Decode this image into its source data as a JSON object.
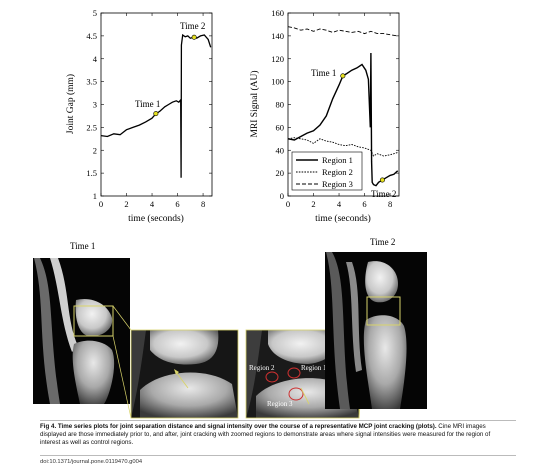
{
  "figure": {
    "left_plot": {
      "ylabel": "Joint Gap (mm)",
      "xlabel": "time (seconds)",
      "annotations": [
        "Time 1",
        "Time 2"
      ]
    },
    "right_plot": {
      "ylabel": "MRI Signal (AU)",
      "xlabel": "time (seconds)",
      "annotations": [
        "Time 1",
        "Time 2"
      ]
    },
    "mri": {
      "time1_label": "Time 1",
      "time2_label": "Time 2",
      "region_labels": [
        "Region 2",
        "Region 1",
        "Region 3"
      ]
    }
  },
  "chart_data": [
    {
      "type": "line",
      "xlabel": "time (seconds)",
      "ylabel": "Joint Gap (mm)",
      "xlim": [
        0,
        8.7
      ],
      "ylim": [
        1,
        5
      ],
      "xticks": [
        0,
        2,
        4,
        6,
        8
      ],
      "yticks": [
        1,
        1.5,
        2,
        2.5,
        3,
        3.5,
        4,
        4.5,
        5
      ],
      "series": [
        {
          "x": [
            0,
            0.5,
            1,
            1.5,
            2,
            2.5,
            3,
            3.5,
            4,
            4.3,
            4.6,
            5,
            5.3,
            5.6,
            5.9,
            6.1,
            6.25,
            6.28,
            6.3,
            6.4,
            6.6,
            6.8,
            7.0,
            7.3,
            7.5,
            7.8,
            8.1,
            8.4,
            8.6
          ],
          "y": [
            2.32,
            2.3,
            2.36,
            2.34,
            2.45,
            2.5,
            2.55,
            2.62,
            2.7,
            2.8,
            2.85,
            2.95,
            3.0,
            3.05,
            3.08,
            3.05,
            3.1,
            1.4,
            4.3,
            4.52,
            4.48,
            4.5,
            4.45,
            4.47,
            4.45,
            4.5,
            4.52,
            4.42,
            4.25
          ]
        }
      ],
      "markers": [
        {
          "label": "Time 1",
          "x": 4.3,
          "y": 2.8
        },
        {
          "label": "Time 2",
          "x": 7.3,
          "y": 4.47
        }
      ]
    },
    {
      "type": "line",
      "xlabel": "time (seconds)",
      "ylabel": "MRI Signal (AU)",
      "xlim": [
        0,
        8.7
      ],
      "ylim": [
        0,
        160
      ],
      "xticks": [
        0,
        2,
        4,
        6,
        8
      ],
      "yticks": [
        0,
        20,
        40,
        60,
        80,
        100,
        120,
        140,
        160
      ],
      "legend": "lower-right",
      "series": [
        {
          "name": "Region 1",
          "x": [
            0,
            0.5,
            1,
            1.5,
            2,
            2.5,
            3,
            3.5,
            4,
            4.3,
            4.6,
            5,
            5.4,
            5.8,
            6.1,
            6.3,
            6.45,
            6.5,
            6.55,
            6.6,
            6.7,
            6.9,
            7.1,
            7.4,
            7.7,
            8.0,
            8.3,
            8.6
          ],
          "y": [
            50,
            49,
            52,
            55,
            57,
            62,
            70,
            85,
            97,
            105,
            107,
            110,
            112,
            115,
            110,
            102,
            60,
            125,
            30,
            12,
            10,
            9,
            12,
            14,
            16,
            18,
            19,
            22
          ]
        },
        {
          "name": "Region 2",
          "x": [
            0,
            0.5,
            1,
            1.5,
            2,
            2.5,
            3,
            3.5,
            4,
            4.5,
            5,
            5.5,
            6,
            6.5,
            6.7,
            7.0,
            7.5,
            8.0,
            8.3,
            8.6
          ],
          "y": [
            50,
            51,
            50,
            49,
            46,
            50,
            48,
            47,
            45,
            44,
            45,
            43,
            42,
            40,
            35,
            37,
            35,
            36,
            37,
            38
          ]
        },
        {
          "name": "Region 3",
          "x": [
            0,
            0.5,
            1,
            1.5,
            2,
            2.5,
            3,
            3.5,
            4,
            4.5,
            5,
            5.5,
            6,
            6.5,
            7,
            7.5,
            8,
            8.6
          ],
          "y": [
            148,
            147,
            145,
            146,
            144,
            146,
            145,
            143,
            145,
            144,
            143,
            144,
            142,
            144,
            142,
            142,
            141,
            140
          ]
        }
      ],
      "markers": [
        {
          "label": "Time 1",
          "x": 4.3,
          "y": 105
        },
        {
          "label": "Time 2",
          "x": 7.4,
          "y": 14
        }
      ]
    }
  ],
  "caption": {
    "bold": "Fig 4. Time series plots for joint separation distance and signal intensity over the course of a representative MCP joint cracking (plots).",
    "text": " Cine MRI images displayed are those immediately prior to, and after, joint cracking with zoomed regions to demonstrate areas where signal intensities were measured for the region of interest as well as control regions."
  },
  "doi": "doi:10.1371/journal.pone.0119470.g004"
}
